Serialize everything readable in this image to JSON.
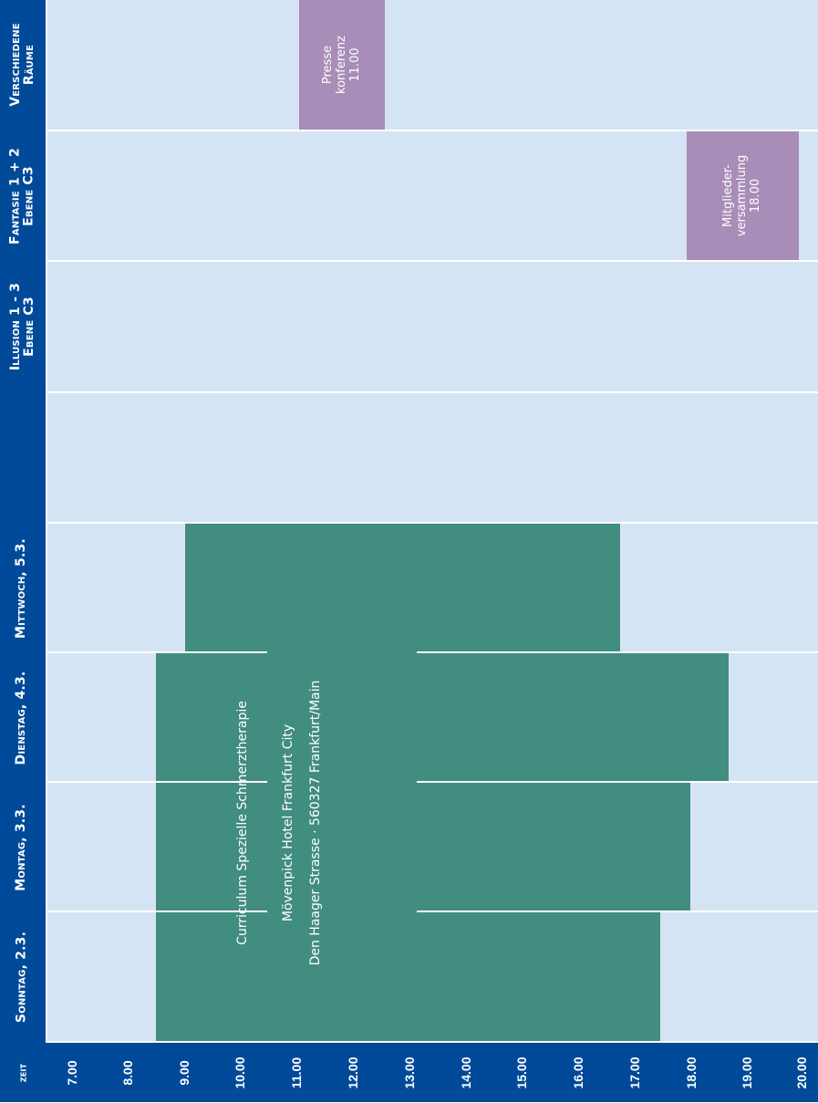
{
  "columns": {
    "verschiedene": "Verschiedene Räume",
    "fantasie": "Fantasie 1 + 2 Ebene C3",
    "illusion": "Illusion 1 - 3 Ebene C3",
    "blank": "",
    "mittwoch": "Mittwoch, 5.3.",
    "dienstag": "Dienstag, 4.3.",
    "montag": "Montag, 3.3.",
    "sonntag": "Sonntag, 2.3.",
    "zeit": "zeit"
  },
  "times": [
    "7.00",
    "8.00",
    "9.00",
    "10.00",
    "11.00",
    "12.00",
    "13.00",
    "14.00",
    "15.00",
    "16.00",
    "17.00",
    "18.00",
    "19.00",
    "20.00"
  ],
  "events": {
    "presse": {
      "line1": "Presse",
      "line2": "konferenz",
      "line3": "11.00"
    },
    "mitglieder": {
      "line1": "Mitglieder-",
      "line2": "versammlung",
      "line3": "18.00"
    },
    "curriculum": {
      "title": "Curriculum Spezielle Schmerztherapie",
      "hotel": "Mövenpick Hotel Frankfurt City",
      "address": "Den Haager Strasse · 560327 Frankfurt/Main"
    }
  },
  "colors": {
    "header": "#004a99",
    "cell": "#d5e4f5",
    "purple": "#a78db7",
    "green": "#418d7f"
  }
}
